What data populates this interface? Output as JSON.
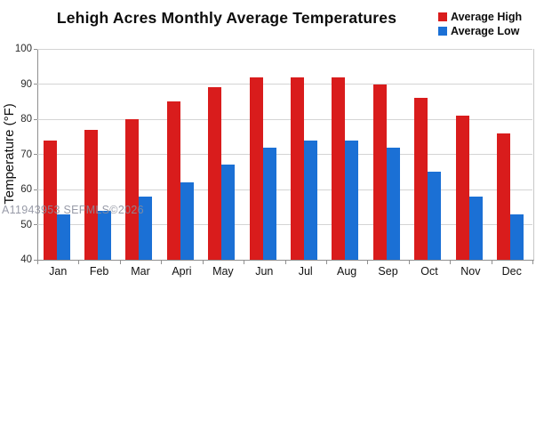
{
  "header": {
    "title": "Lehigh Acres Monthly Average Temperatures"
  },
  "watermark": "A11943953 SEFMLS©2026",
  "colors": {
    "high": "#d91c1c",
    "low": "#1b70d5",
    "gridline": "#d4d4d4",
    "axis": "#8f8f8f"
  },
  "chart_data": {
    "type": "bar",
    "title": "Lehigh Acres Monthly Average Temperatures",
    "categories": [
      "Jan",
      "Feb",
      "Mar",
      "Apri",
      "May",
      "Jun",
      "Jul",
      "Aug",
      "Sep",
      "Oct",
      "Nov",
      "Dec"
    ],
    "series": [
      {
        "name": "Average High",
        "color": "#d91c1c",
        "values": [
          74,
          77,
          80,
          85,
          89,
          92,
          92,
          92,
          90,
          86,
          81,
          76
        ]
      },
      {
        "name": "Average Low",
        "color": "#1b70d5",
        "values": [
          53,
          54,
          58,
          62,
          67,
          72,
          74,
          74,
          72,
          65,
          58,
          53
        ]
      }
    ],
    "xlabel": "",
    "ylabel": "Temperature (°F)",
    "ylim": [
      40,
      100
    ],
    "yticks": [
      40,
      50,
      60,
      70,
      80,
      90,
      100
    ],
    "grid": true,
    "legend_position": "top-right"
  }
}
